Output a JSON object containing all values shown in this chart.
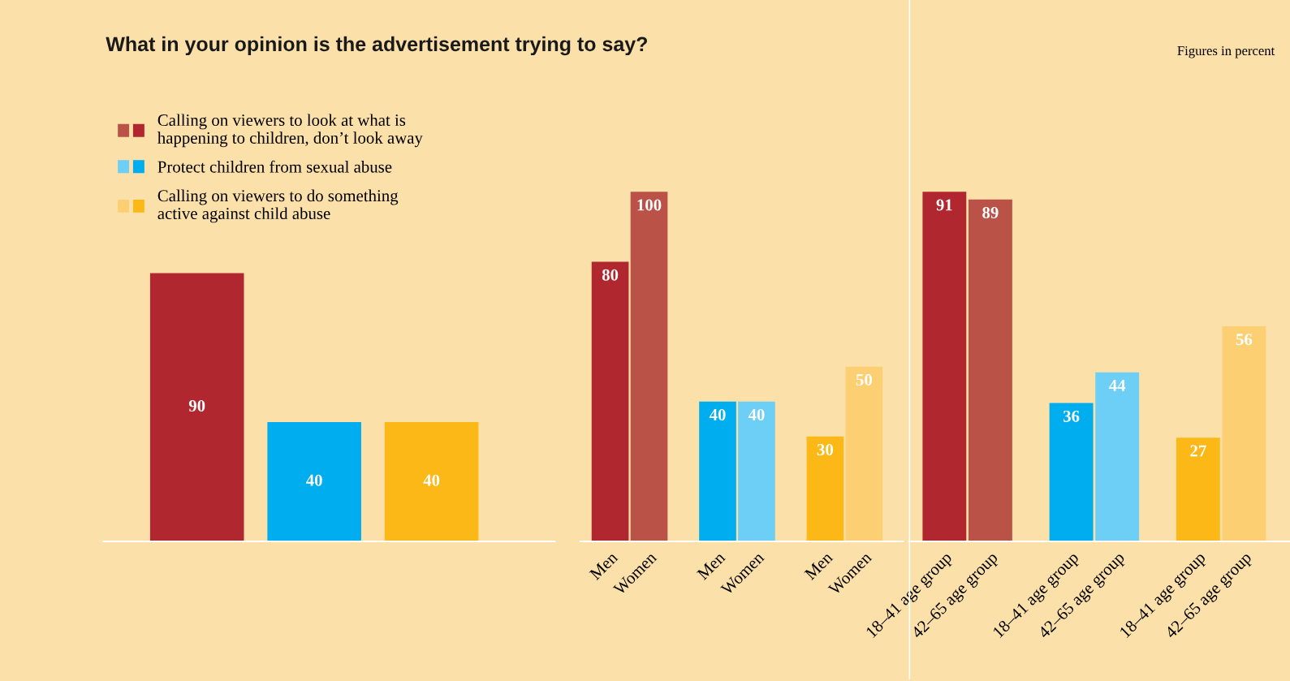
{
  "chart_data": [
    {
      "type": "bar",
      "title": "What in your opinion is the advertisement trying to say?",
      "categories": [
        null,
        null,
        null
      ],
      "series": [
        {
          "name": "Calling on viewers to look at what is\nhappening to children, don’t look away",
          "color": "#b0272f",
          "values": [
            90,
            null,
            null
          ]
        },
        {
          "name": "Protect children from sexual abuse",
          "color": "#00adee",
          "values": [
            null,
            40,
            null
          ]
        },
        {
          "name": "Calling on viewers to do something\nactive against child abuse",
          "color": "#fbb817",
          "values": [
            null,
            null,
            40
          ]
        }
      ],
      "stacked": true,
      "data_labels": true,
      "legend": "top left",
      "tick_labels": false
    },
    {
      "type": "bar",
      "categories": [
        "Men",
        "Women",
        "Men",
        "Women",
        "Men",
        "Women"
      ],
      "values": [
        80,
        100,
        40,
        40,
        30,
        50
      ],
      "colors": [
        "#b0272f",
        "#bb5247",
        "#00adee",
        "#6dcff6",
        "#fbb817",
        "#fdcf73"
      ],
      "data_labels": true,
      "tick_labels": "x"
    },
    {
      "type": "bar",
      "categories": [
        "18–41 age group",
        "42–65 age group",
        "18–41 age group",
        "42–65 age group",
        "18–41 age group",
        "42–65 age group"
      ],
      "values": [
        91,
        89,
        36,
        44,
        27,
        56
      ],
      "colors": [
        "#b0272f",
        "#bb5247",
        "#00adee",
        "#6dcff6",
        "#fbb817",
        "#fdcf73"
      ],
      "data_labels": true,
      "tick_labels": "x",
      "annotations": [
        "Figures in percent"
      ]
    }
  ]
}
